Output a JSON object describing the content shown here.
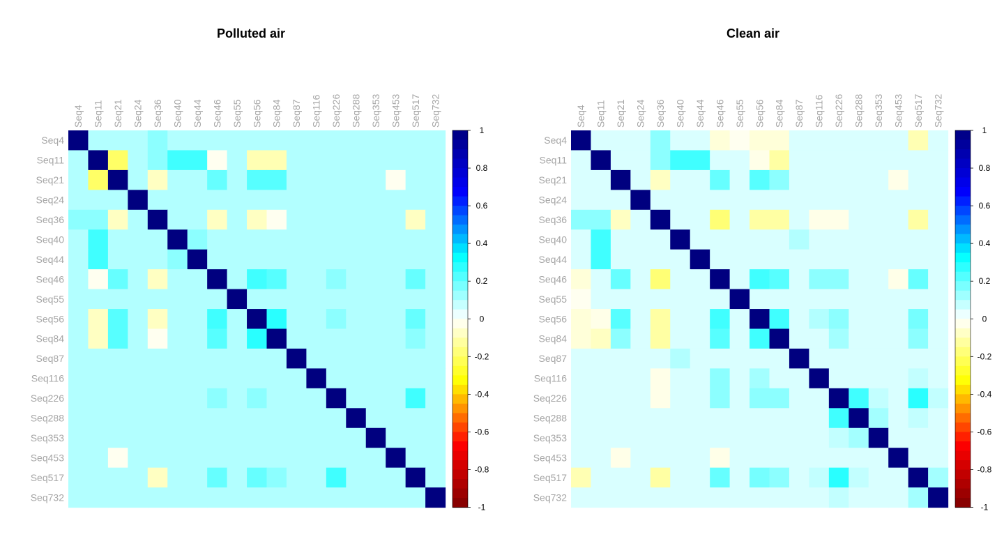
{
  "chart_data": [
    {
      "type": "heatmap",
      "title": "Polluted air",
      "labels": [
        "Seq4",
        "Seq11",
        "Seq21",
        "Seq24",
        "Seq36",
        "Seq40",
        "Seq44",
        "Seq46",
        "Seq55",
        "Seq56",
        "Seq84",
        "Seq87",
        "Seq116",
        "Seq226",
        "Seq288",
        "Seq353",
        "Seq453",
        "Seq517",
        "Seq732"
      ],
      "color_range": [
        -1,
        1
      ],
      "colorbar_ticks": [
        1,
        0.8,
        0.6,
        0.4,
        0.2,
        0,
        -0.2,
        -0.4,
        -0.6,
        -0.8,
        -1
      ],
      "colorbar_tick_labels": [
        "1",
        "0.8",
        "0.6",
        "0.4",
        "0.2",
        "0",
        "-0.2",
        "-0.4",
        "-0.6",
        "-0.8",
        "-1"
      ],
      "baseline": 0.1,
      "values": [
        [
          1,
          0.1,
          0.1,
          0.1,
          0.15,
          0.1,
          0.1,
          0.1,
          0.1,
          0.1,
          0.1,
          0.1,
          0.1,
          0.1,
          0.1,
          0.1,
          0.1,
          0.1,
          0.1
        ],
        [
          0.1,
          1,
          -0.2,
          0.1,
          0.15,
          0.25,
          0.25,
          -0.02,
          0.1,
          -0.1,
          -0.1,
          0.1,
          0.1,
          0.1,
          0.1,
          0.1,
          0.1,
          0.1,
          0.1
        ],
        [
          0.1,
          -0.2,
          1,
          0.1,
          -0.08,
          0.1,
          0.1,
          0.2,
          0.1,
          0.22,
          0.22,
          0.1,
          0.1,
          0.1,
          0.1,
          0.1,
          -0.02,
          0.1,
          0.1
        ],
        [
          0.1,
          0.1,
          0.1,
          1,
          0.1,
          0.1,
          0.1,
          0.1,
          0.1,
          0.1,
          0.1,
          0.1,
          0.1,
          0.1,
          0.1,
          0.1,
          0.1,
          0.1,
          0.1
        ],
        [
          0.15,
          0.15,
          -0.08,
          0.1,
          1,
          0.1,
          0.1,
          -0.08,
          0.1,
          -0.08,
          -0.02,
          0.1,
          0.1,
          0.1,
          0.1,
          0.1,
          0.1,
          -0.08,
          0.1
        ],
        [
          0.1,
          0.25,
          0.1,
          0.1,
          0.1,
          1,
          0.15,
          0.1,
          0.1,
          0.1,
          0.1,
          0.1,
          0.1,
          0.1,
          0.1,
          0.1,
          0.1,
          0.1,
          0.1
        ],
        [
          0.1,
          0.25,
          0.1,
          0.1,
          0.1,
          0.15,
          1,
          0.1,
          0.1,
          0.1,
          0.1,
          0.1,
          0.1,
          0.1,
          0.1,
          0.1,
          0.1,
          0.1,
          0.1
        ],
        [
          0.1,
          -0.02,
          0.2,
          0.1,
          -0.08,
          0.1,
          0.1,
          1,
          0.1,
          0.25,
          0.22,
          0.1,
          0.1,
          0.15,
          0.1,
          0.1,
          0.1,
          0.2,
          0.1
        ],
        [
          0.1,
          0.1,
          0.1,
          0.1,
          0.1,
          0.1,
          0.1,
          0.1,
          1,
          0.1,
          0.1,
          0.1,
          0.1,
          0.1,
          0.1,
          0.1,
          0.1,
          0.1,
          0.1
        ],
        [
          0.1,
          -0.08,
          0.22,
          0.1,
          -0.08,
          0.1,
          0.1,
          0.25,
          0.1,
          1,
          0.28,
          0.1,
          0.1,
          0.15,
          0.1,
          0.1,
          0.1,
          0.2,
          0.1
        ],
        [
          0.1,
          -0.08,
          0.22,
          0.1,
          -0.02,
          0.1,
          0.1,
          0.22,
          0.1,
          0.28,
          1,
          0.1,
          0.1,
          0.1,
          0.1,
          0.1,
          0.1,
          0.15,
          0.1
        ],
        [
          0.1,
          0.1,
          0.1,
          0.1,
          0.1,
          0.1,
          0.1,
          0.1,
          0.1,
          0.1,
          0.1,
          1,
          0.1,
          0.1,
          0.1,
          0.1,
          0.1,
          0.1,
          0.1
        ],
        [
          0.1,
          0.1,
          0.1,
          0.1,
          0.1,
          0.1,
          0.1,
          0.1,
          0.1,
          0.1,
          0.1,
          0.1,
          1,
          0.1,
          0.1,
          0.1,
          0.1,
          0.1,
          0.1
        ],
        [
          0.1,
          0.1,
          0.1,
          0.1,
          0.1,
          0.1,
          0.1,
          0.15,
          0.1,
          0.15,
          0.1,
          0.1,
          0.1,
          1,
          0.1,
          0.1,
          0.1,
          0.25,
          0.1
        ],
        [
          0.1,
          0.1,
          0.1,
          0.1,
          0.1,
          0.1,
          0.1,
          0.1,
          0.1,
          0.1,
          0.1,
          0.1,
          0.1,
          0.1,
          1,
          0.1,
          0.1,
          0.1,
          0.1
        ],
        [
          0.1,
          0.1,
          0.1,
          0.1,
          0.1,
          0.1,
          0.1,
          0.1,
          0.1,
          0.1,
          0.1,
          0.1,
          0.1,
          0.1,
          0.1,
          1,
          0.1,
          0.1,
          0.1
        ],
        [
          0.1,
          0.1,
          -0.02,
          0.1,
          0.1,
          0.1,
          0.1,
          0.1,
          0.1,
          0.1,
          0.1,
          0.1,
          0.1,
          0.1,
          0.1,
          0.1,
          1,
          0.1,
          0.1
        ],
        [
          0.1,
          0.1,
          0.1,
          0.1,
          -0.08,
          0.1,
          0.1,
          0.2,
          0.1,
          0.2,
          0.15,
          0.1,
          0.1,
          0.25,
          0.1,
          0.1,
          0.1,
          1,
          0.1
        ],
        [
          0.1,
          0.1,
          0.1,
          0.1,
          0.1,
          0.1,
          0.1,
          0.1,
          0.1,
          0.1,
          0.1,
          0.1,
          0.1,
          0.1,
          0.1,
          0.1,
          0.1,
          0.1,
          1
        ]
      ]
    },
    {
      "type": "heatmap",
      "title": "Clean air",
      "labels": [
        "Seq4",
        "Seq11",
        "Seq21",
        "Seq24",
        "Seq36",
        "Seq40",
        "Seq44",
        "Seq46",
        "Seq55",
        "Seq56",
        "Seq84",
        "Seq87",
        "Seq116",
        "Seq226",
        "Seq288",
        "Seq353",
        "Seq453",
        "Seq517",
        "Seq732"
      ],
      "color_range": [
        -1,
        1
      ],
      "colorbar_ticks": [
        1,
        0.8,
        0.6,
        0.4,
        0.2,
        0,
        -0.2,
        -0.4,
        -0.6,
        -0.8,
        -1
      ],
      "colorbar_tick_labels": [
        "1",
        "0.8",
        "0.6",
        "0.4",
        "0.2",
        "0",
        "-0.2",
        "-0.4",
        "-0.6",
        "-0.8",
        "-1"
      ],
      "baseline": 0.05,
      "values": [
        [
          1,
          0.05,
          0.05,
          0.05,
          0.15,
          0.05,
          0.05,
          -0.05,
          -0.02,
          -0.05,
          -0.05,
          0.05,
          0.05,
          0.05,
          0.05,
          0.05,
          0.05,
          -0.1,
          0.05
        ],
        [
          0.05,
          1,
          0.05,
          0.05,
          0.15,
          0.25,
          0.25,
          0.05,
          0.05,
          -0.03,
          -0.12,
          0.05,
          0.05,
          0.05,
          0.05,
          0.05,
          0.05,
          0.05,
          0.05
        ],
        [
          0.05,
          0.05,
          1,
          0.05,
          -0.08,
          0.05,
          0.05,
          0.2,
          0.05,
          0.22,
          0.15,
          0.05,
          0.05,
          0.05,
          0.05,
          0.05,
          -0.03,
          0.05,
          0.05
        ],
        [
          0.05,
          0.05,
          0.05,
          1,
          0.05,
          0.05,
          0.05,
          0.05,
          0.05,
          0.05,
          0.05,
          0.05,
          0.05,
          0.05,
          0.05,
          0.05,
          0.05,
          0.05,
          0.05
        ],
        [
          0.15,
          0.15,
          -0.08,
          0.05,
          1,
          0.05,
          0.05,
          -0.18,
          0.05,
          -0.12,
          -0.12,
          0.05,
          -0.03,
          -0.03,
          0.05,
          0.05,
          0.05,
          -0.12,
          0.05
        ],
        [
          0.05,
          0.25,
          0.05,
          0.05,
          0.05,
          1,
          0.05,
          0.05,
          0.05,
          0.05,
          0.05,
          0.1,
          0.05,
          0.05,
          0.05,
          0.05,
          0.05,
          0.05,
          0.05
        ],
        [
          0.05,
          0.25,
          0.05,
          0.05,
          0.05,
          0.05,
          1,
          0.05,
          0.05,
          0.05,
          0.05,
          0.05,
          0.05,
          0.05,
          0.05,
          0.05,
          0.05,
          0.05,
          0.05
        ],
        [
          -0.05,
          0.05,
          0.2,
          0.05,
          -0.18,
          0.05,
          0.05,
          1,
          0.05,
          0.25,
          0.22,
          0.05,
          0.15,
          0.15,
          0.05,
          0.05,
          -0.03,
          0.2,
          0.05
        ],
        [
          -0.02,
          0.05,
          0.05,
          0.05,
          0.05,
          0.05,
          0.05,
          0.05,
          1,
          0.05,
          0.05,
          0.05,
          0.05,
          0.05,
          0.05,
          0.05,
          0.05,
          0.05,
          0.05
        ],
        [
          -0.05,
          -0.03,
          0.22,
          0.05,
          -0.12,
          0.05,
          0.05,
          0.25,
          0.05,
          1,
          0.25,
          0.05,
          0.1,
          0.15,
          0.05,
          0.05,
          0.05,
          0.18,
          0.05
        ],
        [
          -0.05,
          -0.08,
          0.15,
          0.05,
          -0.12,
          0.05,
          0.05,
          0.22,
          0.05,
          0.25,
          1,
          0.05,
          0.05,
          0.12,
          0.05,
          0.05,
          0.05,
          0.15,
          0.05
        ],
        [
          0.05,
          0.05,
          0.05,
          0.05,
          0.05,
          0.1,
          0.05,
          0.05,
          0.05,
          0.05,
          0.05,
          1,
          0.05,
          0.05,
          0.05,
          0.05,
          0.05,
          0.05,
          0.05
        ],
        [
          0.05,
          0.05,
          0.05,
          0.05,
          -0.03,
          0.05,
          0.05,
          0.15,
          0.05,
          0.12,
          0.05,
          0.05,
          1,
          0.05,
          0.05,
          0.05,
          0.05,
          0.08,
          0.05
        ],
        [
          0.05,
          0.05,
          0.05,
          0.05,
          -0.03,
          0.05,
          0.05,
          0.15,
          0.05,
          0.15,
          0.15,
          0.05,
          0.05,
          1,
          0.25,
          0.08,
          0.05,
          0.28,
          0.08
        ],
        [
          0.05,
          0.05,
          0.05,
          0.05,
          0.05,
          0.05,
          0.05,
          0.05,
          0.05,
          0.05,
          0.05,
          0.05,
          0.05,
          0.25,
          1,
          0.12,
          0.05,
          0.08,
          0.05
        ],
        [
          0.05,
          0.05,
          0.05,
          0.05,
          0.05,
          0.05,
          0.05,
          0.05,
          0.05,
          0.05,
          0.05,
          0.05,
          0.05,
          0.08,
          0.12,
          1,
          0.05,
          0.05,
          0.05
        ],
        [
          0.05,
          0.05,
          -0.03,
          0.05,
          0.05,
          0.05,
          0.05,
          -0.03,
          0.05,
          0.05,
          0.05,
          0.05,
          0.05,
          0.05,
          0.05,
          0.05,
          1,
          0.05,
          0.05
        ],
        [
          -0.1,
          0.05,
          0.05,
          0.05,
          -0.12,
          0.05,
          0.05,
          0.2,
          0.05,
          0.18,
          0.15,
          0.05,
          0.08,
          0.28,
          0.08,
          0.05,
          0.05,
          1,
          0.12
        ],
        [
          0.05,
          0.05,
          0.05,
          0.05,
          0.05,
          0.05,
          0.05,
          0.05,
          0.05,
          0.05,
          0.05,
          0.05,
          0.05,
          0.08,
          0.05,
          0.05,
          0.05,
          0.12,
          1
        ]
      ]
    }
  ],
  "colormap": [
    "#7f0000",
    "#ff0000",
    "#ffff00",
    "#ffffff",
    "#00ffff",
    "#0000ff",
    "#00007f"
  ],
  "label_color": "#a6a6a6"
}
